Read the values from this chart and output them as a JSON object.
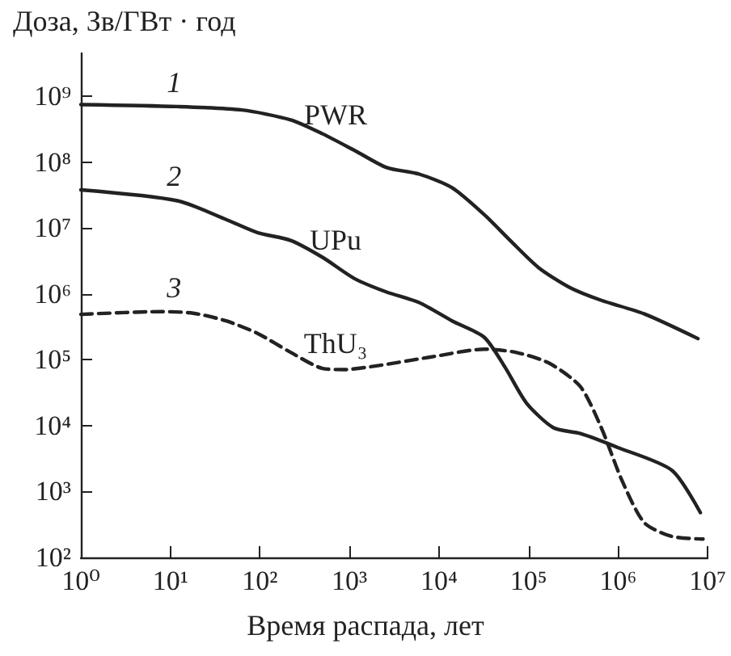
{
  "chart_data": {
    "type": "line",
    "xlabel": "Время распада, лет",
    "ylabel": "Доза, Зв/ГВт · год",
    "log": "xy",
    "marker": "none",
    "xlim": [
      1,
      10000000
    ],
    "ylim": [
      100,
      4500000000
    ],
    "xticks": [
      {
        "value": 1,
        "label": "10⁰"
      },
      {
        "value": 10,
        "label": "10¹"
      },
      {
        "value": 100,
        "label": "10²"
      },
      {
        "value": 1000,
        "label": "10³"
      },
      {
        "value": 10000,
        "label": "10⁴"
      },
      {
        "value": 100000,
        "label": "10⁵"
      },
      {
        "value": 1000000,
        "label": "10⁶"
      },
      {
        "value": 10000000,
        "label": "10⁷"
      }
    ],
    "yticks": [
      {
        "value": 100,
        "label": "10²"
      },
      {
        "value": 1000,
        "label": "10³"
      },
      {
        "value": 10000,
        "label": "10⁴"
      },
      {
        "value": 100000,
        "label": "10⁵"
      },
      {
        "value": 1000000,
        "label": "10⁶"
      },
      {
        "value": 10000000,
        "label": "10⁷"
      },
      {
        "value": 100000000,
        "label": "10⁸"
      },
      {
        "value": 1000000000,
        "label": "10⁹"
      }
    ],
    "series": [
      {
        "name": "PWR",
        "color": "#222222",
        "line_style": "solid",
        "x": [
          1,
          12,
          63,
          220,
          500,
          1150,
          2600,
          6000,
          14000,
          32000,
          63000,
          130000,
          290000,
          650000,
          1950000,
          7800000
        ],
        "values": [
          750000000,
          700000000,
          620000000,
          440000000,
          270000000,
          150000000,
          83000000,
          66000000,
          41000000,
          16000000,
          6400000,
          2500000,
          1250000,
          800000,
          500000,
          210000
        ]
      },
      {
        "name": "UPu",
        "color": "#222222",
        "line_style": "solid",
        "x": [
          1,
          12,
          42,
          95,
          220,
          500,
          1150,
          2600,
          6000,
          14000,
          32000,
          55000,
          95000,
          190000,
          380000,
          980000,
          4000000,
          8300000
        ],
        "values": [
          38000000,
          26000000,
          13500000,
          8500000,
          6500000,
          3600000,
          1700000,
          1070000,
          740000,
          390000,
          220000,
          76000,
          22000,
          9300,
          7600,
          4700,
          2100,
          480
        ]
      },
      {
        "name": "ThU₃",
        "color": "#222222",
        "line_style": "dashed",
        "x": [
          1,
          8,
          18,
          42,
          95,
          220,
          500,
          870,
          2000,
          8000,
          32000,
          72000,
          170000,
          380000,
          650000,
          1100000,
          1950000,
          3900000,
          8900000
        ],
        "values": [
          490000,
          540000,
          510000,
          390000,
          250000,
          130000,
          74000,
          71000,
          81000,
          110000,
          145000,
          130000,
          89000,
          39000,
          9300,
          1500,
          340,
          210,
          190
        ]
      }
    ],
    "annotations": [
      "1",
      "2",
      "3"
    ]
  }
}
